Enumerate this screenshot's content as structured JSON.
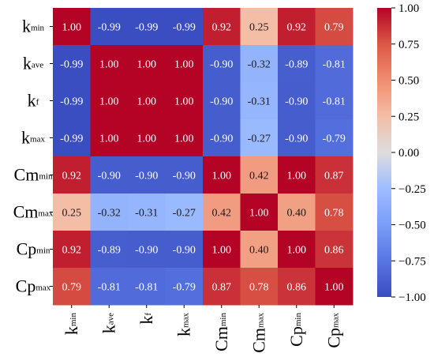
{
  "chart_data": {
    "type": "heatmap",
    "title": "",
    "rows": [
      {
        "main": "k",
        "sub": "min"
      },
      {
        "main": "k",
        "sub": "ave"
      },
      {
        "main": "k",
        "sub": "f"
      },
      {
        "main": "k",
        "sub": "max"
      },
      {
        "main": "Cm",
        "sub": "min"
      },
      {
        "main": "Cm",
        "sub": "max"
      },
      {
        "main": "Cp",
        "sub": "min"
      },
      {
        "main": "Cp",
        "sub": "max"
      }
    ],
    "columns": [
      {
        "main": "k",
        "sub": "min"
      },
      {
        "main": "k",
        "sub": "ave"
      },
      {
        "main": "k",
        "sub": "f"
      },
      {
        "main": "k",
        "sub": "max"
      },
      {
        "main": "Cm",
        "sub": "min"
      },
      {
        "main": "Cm",
        "sub": "max"
      },
      {
        "main": "Cp",
        "sub": "min"
      },
      {
        "main": "Cp",
        "sub": "max"
      }
    ],
    "values": [
      [
        1.0,
        -0.99,
        -0.99,
        -0.99,
        0.92,
        0.25,
        0.92,
        0.79
      ],
      [
        -0.99,
        1.0,
        1.0,
        1.0,
        -0.9,
        -0.32,
        -0.89,
        -0.81
      ],
      [
        -0.99,
        1.0,
        1.0,
        1.0,
        -0.9,
        -0.31,
        -0.9,
        -0.81
      ],
      [
        -0.99,
        1.0,
        1.0,
        1.0,
        -0.9,
        -0.27,
        -0.9,
        -0.79
      ],
      [
        0.92,
        -0.9,
        -0.9,
        -0.9,
        1.0,
        0.42,
        1.0,
        0.87
      ],
      [
        0.25,
        -0.32,
        -0.31,
        -0.27,
        0.42,
        1.0,
        0.4,
        0.78
      ],
      [
        0.92,
        -0.89,
        -0.9,
        -0.9,
        1.0,
        0.4,
        1.0,
        0.86
      ],
      [
        0.79,
        -0.81,
        -0.81,
        -0.79,
        0.87,
        0.78,
        0.86,
        1.0
      ]
    ],
    "colormap": "coolwarm",
    "vmin": -1.0,
    "vmax": 1.0,
    "colorbar": {
      "position": "right",
      "ticks": [
        "1.00",
        "0.75",
        "0.50",
        "0.25",
        "0.00",
        "−0.25",
        "−0.50",
        "−0.75",
        "−1.00"
      ]
    }
  }
}
